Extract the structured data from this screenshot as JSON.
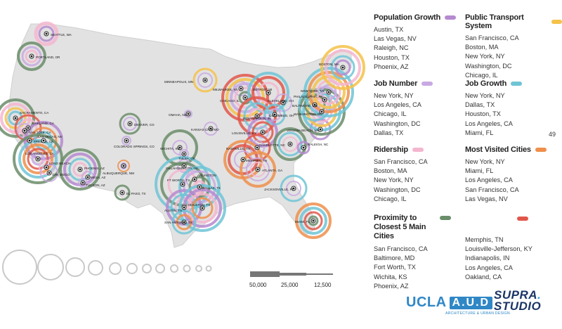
{
  "page_number": "49",
  "colors": {
    "population_growth": "#b58ad0",
    "public_transport": "#f5c24a",
    "job_number": "#c8a9e2",
    "job_growth": "#6fc4d6",
    "ridership": "#f4b6cf",
    "most_visited": "#ef8f4c",
    "proximity": "#6b8d6a",
    "unlabeled_red": "#e0574a"
  },
  "categories": [
    {
      "id": "population_growth",
      "title": "Population Growth",
      "cities": [
        "Austin, TX",
        "Las Vegas, NV",
        "Raleigh, NC",
        "Houston, TX",
        "Phoenix, AZ"
      ]
    },
    {
      "id": "public_transport",
      "title": "Public Transport System",
      "cities": [
        "San Francisco, CA",
        "Boston, MA",
        "New York, NY",
        "Washington, DC",
        "Chicago, IL"
      ]
    },
    {
      "id": "job_number",
      "title": "Job Number",
      "cities": [
        "New York, NY",
        "Los Angeles, CA",
        "Chicago, IL",
        "Washington, DC",
        "Dallas, TX"
      ]
    },
    {
      "id": "job_growth",
      "title": "Job Growth",
      "cities": [
        "New York, NY",
        "Dallas, TX",
        "Houston, TX",
        "Los Angeles, CA",
        "Miami, FL"
      ]
    },
    {
      "id": "ridership",
      "title": "Ridership",
      "cities": [
        "San Francisco, CA",
        "Boston, MA",
        "New York, NY",
        "Washington, DC",
        "Chicago, IL"
      ]
    },
    {
      "id": "most_visited",
      "title": "Most Visited Cities",
      "cities": [
        "New York, NY",
        "Miami, FL",
        "Los Angeles, CA",
        "San Francisco, CA",
        "Las Vegas, NV"
      ]
    },
    {
      "id": "proximity",
      "title": "Proximity to Closest 5 Main Cities",
      "cities": [
        "San Francisco, CA",
        "Baltimore, MD",
        "Fort Worth, TX",
        "Wichita, KS",
        "Phoenix, AZ"
      ]
    },
    {
      "id": "unlabeled_red",
      "title": "",
      "cities": [
        "Memphis, TN",
        "Louisville-Jefferson, KY",
        "Indianapolis, IN",
        "Los Angeles, CA",
        "Oakland, CA"
      ]
    }
  ],
  "map_labels": [
    "SEATTLE, WA",
    "PORTLAND, OR",
    "SACRAMENTO, CA",
    "OAKLAND, CA",
    "SAN JOSE, CA",
    "FRESNO, CA",
    "LAS VEGAS, NV",
    "LOS ANGELES, CA",
    "LONG BEACH",
    "SAN DIEGO",
    "PHOENIX, AZ",
    "MESA, AZ",
    "TUCSON, AZ",
    "DENVER, CO",
    "COLORADO SPRINGS, CO",
    "ALBUQUERQUE, NM",
    "EL PASO, TX",
    "MINNEAPOLIS, MN",
    "OMAHA, NE",
    "KANSAS CITY, MO",
    "WICHITA, KS",
    "TULSA, OK",
    "OKLAHOMA CITY, OK",
    "ARLINGTON",
    "FT WORTH, TX",
    "DALLAS, TX",
    "AUSTIN, TX",
    "HOUSTON, TX",
    "SAN ANTONIO, TX",
    "MILWAUKEE, WI",
    "CHICAGO, IL",
    "DETROIT, MI",
    "CLEVELAND, OH",
    "INDIANAPOLIS, IN",
    "COLUMBUS, OH",
    "LOUISVILLE, KY",
    "NASHVILLE, TN",
    "MEMPHIS, TN",
    "ATLANTA, GA",
    "CHARLOTTE, NC",
    "RALEIGH, NC",
    "VIRGINIA BEACH, VA",
    "WASHINGTON, DC",
    "BALTIMORE, MD",
    "PHILADELPHIA, PA",
    "NEW YORK, NY",
    "BOSTON, MA",
    "JACKSONVILLE, FL",
    "MIAMI, FL"
  ],
  "size_scale": {
    "labels": [
      "50,000",
      "25,000",
      "12,500"
    ]
  },
  "logos": {
    "ucla": "UCLA",
    "aud": "A.U.D",
    "aud_sub": "ARCHITECTURE & URBAN DESIGN",
    "supra_line1": "SUPRA",
    "supra_line2": "STUDIO",
    "supra_dot": "."
  }
}
